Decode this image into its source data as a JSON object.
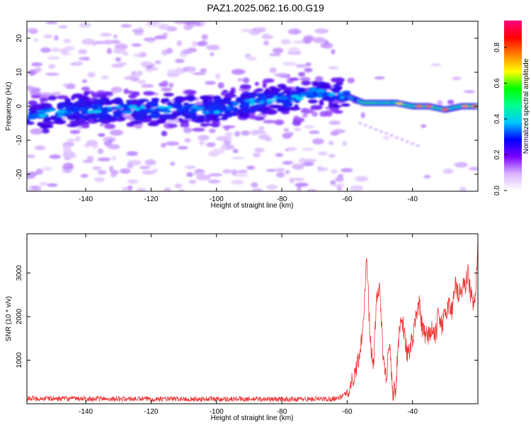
{
  "title": "PAZ1.2025.062.16.00.G19",
  "chart_data": [
    {
      "type": "heatmap",
      "xlabel": "Height of straight line (km)",
      "ylabel": "Frequency (Hz)",
      "xlim": [
        -158,
        -20
      ],
      "ylim": [
        -25,
        25
      ],
      "xticks": [
        -140,
        -120,
        -100,
        -80,
        -60,
        -40
      ],
      "yticks": [
        -20,
        -10,
        0,
        10,
        20
      ],
      "ridge_frequency": {
        "x": [
          -158,
          -150,
          -140,
          -130,
          -120,
          -110,
          -100,
          -90,
          -80,
          -70,
          -60,
          -55,
          -50,
          -45,
          -40,
          -35,
          -30,
          -25,
          -20
        ],
        "y": [
          -3,
          -2,
          -1,
          -1,
          -1,
          -1,
          -1,
          1,
          2,
          4,
          3,
          1,
          1,
          1,
          0,
          0,
          -1,
          0,
          0
        ]
      },
      "colorbar": {
        "label": "Normalized spectral amplitude",
        "range": [
          0,
          0.95
        ],
        "ticks": [
          "0.0",
          "0.2",
          "0.4",
          "0.6",
          "0.8"
        ],
        "tick_values": [
          0,
          0.2,
          0.4,
          0.6,
          0.8
        ],
        "colors": [
          "#ffffff",
          "#d9b3ff",
          "#7a00ff",
          "#0000ff",
          "#00c8ff",
          "#00ff90",
          "#00ff00",
          "#ffff00",
          "#ff8000",
          "#ff0000",
          "#ff0080"
        ]
      }
    },
    {
      "type": "line",
      "xlabel": "Height of straight line (km)",
      "ylabel": "SNR (10 * v/v)",
      "xlim": [
        -158,
        -20
      ],
      "ylim": [
        0,
        3900
      ],
      "xticks": [
        -140,
        -120,
        -100,
        -80,
        -60,
        -40
      ],
      "yticks": [
        1000,
        2000,
        3000
      ],
      "color": "#ee3333",
      "series": {
        "x": [
          -158,
          -140,
          -120,
          -100,
          -80,
          -65,
          -62,
          -60,
          -58,
          -56,
          -55,
          -54,
          -53,
          -52,
          -51,
          -50,
          -49,
          -48,
          -47,
          -46,
          -45,
          -44,
          -43,
          -42,
          -41,
          -40,
          -39,
          -38,
          -37,
          -36,
          -35,
          -34,
          -33,
          -32,
          -31,
          -30,
          -29,
          -28,
          -27,
          -26,
          -25,
          -24,
          -23,
          -22,
          -21,
          -20
        ],
        "y": [
          120,
          115,
          110,
          110,
          105,
          110,
          150,
          250,
          600,
          1200,
          2000,
          3400,
          1500,
          800,
          2400,
          2700,
          1000,
          600,
          1500,
          200,
          500,
          1800,
          1900,
          1300,
          1100,
          1500,
          1900,
          2300,
          1700,
          1500,
          1600,
          1700,
          1500,
          2100,
          1800,
          2000,
          2300,
          2100,
          2800,
          2500,
          2600,
          2700,
          3000,
          2400,
          2300,
          3700
        ]
      }
    }
  ]
}
